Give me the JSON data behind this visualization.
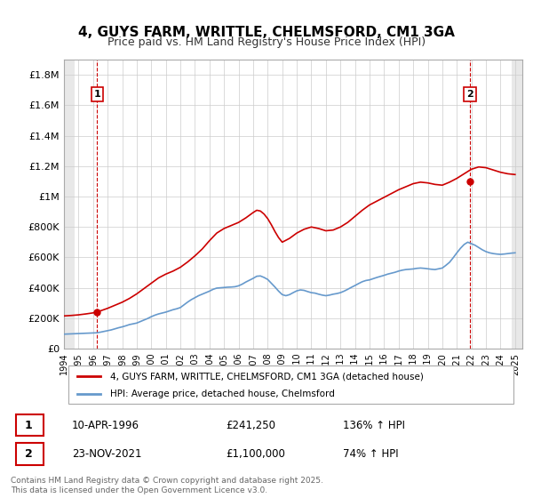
{
  "title": "4, GUYS FARM, WRITTLE, CHELMSFORD, CM1 3GA",
  "subtitle": "Price paid vs. HM Land Registry's House Price Index (HPI)",
  "xlim": [
    1994.0,
    2025.5
  ],
  "ylim": [
    0,
    1900000
  ],
  "yticks": [
    0,
    200000,
    400000,
    600000,
    800000,
    1000000,
    1200000,
    1400000,
    1600000,
    1800000
  ],
  "ytick_labels": [
    "£0",
    "£200K",
    "£400K",
    "£600K",
    "£800K",
    "£1M",
    "£1.2M",
    "£1.4M",
    "£1.6M",
    "£1.8M"
  ],
  "xticks": [
    1994,
    1995,
    1996,
    1997,
    1998,
    1999,
    2000,
    2001,
    2002,
    2003,
    2004,
    2005,
    2006,
    2007,
    2008,
    2009,
    2010,
    2011,
    2012,
    2013,
    2014,
    2015,
    2016,
    2017,
    2018,
    2019,
    2020,
    2021,
    2022,
    2023,
    2024,
    2025
  ],
  "background_color": "#ffffff",
  "plot_bg_color": "#ffffff",
  "grid_color": "#cccccc",
  "hatch_color": "#d0d0d0",
  "red_color": "#cc0000",
  "blue_color": "#6699cc",
  "point1_x": 1996.27,
  "point1_y": 241250,
  "point2_x": 2021.9,
  "point2_y": 1100000,
  "legend_line1": "4, GUYS FARM, WRITTLE, CHELMSFORD, CM1 3GA (detached house)",
  "legend_line2": "HPI: Average price, detached house, Chelmsford",
  "annot1_label": "1",
  "annot1_date": "10-APR-1996",
  "annot1_price": "£241,250",
  "annot1_hpi": "136% ↑ HPI",
  "annot2_label": "2",
  "annot2_date": "23-NOV-2021",
  "annot2_price": "£1,100,000",
  "annot2_hpi": "74% ↑ HPI",
  "footer": "Contains HM Land Registry data © Crown copyright and database right 2025.\nThis data is licensed under the Open Government Licence v3.0.",
  "hpi_data_x": [
    1994.0,
    1994.25,
    1994.5,
    1994.75,
    1995.0,
    1995.25,
    1995.5,
    1995.75,
    1996.0,
    1996.25,
    1996.5,
    1996.75,
    1997.0,
    1997.25,
    1997.5,
    1997.75,
    1998.0,
    1998.25,
    1998.5,
    1998.75,
    1999.0,
    1999.25,
    1999.5,
    1999.75,
    2000.0,
    2000.25,
    2000.5,
    2000.75,
    2001.0,
    2001.25,
    2001.5,
    2001.75,
    2002.0,
    2002.25,
    2002.5,
    2002.75,
    2003.0,
    2003.25,
    2003.5,
    2003.75,
    2004.0,
    2004.25,
    2004.5,
    2004.75,
    2005.0,
    2005.25,
    2005.5,
    2005.75,
    2006.0,
    2006.25,
    2006.5,
    2006.75,
    2007.0,
    2007.25,
    2007.5,
    2007.75,
    2008.0,
    2008.25,
    2008.5,
    2008.75,
    2009.0,
    2009.25,
    2009.5,
    2009.75,
    2010.0,
    2010.25,
    2010.5,
    2010.75,
    2011.0,
    2011.25,
    2011.5,
    2011.75,
    2012.0,
    2012.25,
    2012.5,
    2012.75,
    2013.0,
    2013.25,
    2013.5,
    2013.75,
    2014.0,
    2014.25,
    2014.5,
    2014.75,
    2015.0,
    2015.25,
    2015.5,
    2015.75,
    2016.0,
    2016.25,
    2016.5,
    2016.75,
    2017.0,
    2017.25,
    2017.5,
    2017.75,
    2018.0,
    2018.25,
    2018.5,
    2018.75,
    2019.0,
    2019.25,
    2019.5,
    2019.75,
    2020.0,
    2020.25,
    2020.5,
    2020.75,
    2021.0,
    2021.25,
    2021.5,
    2021.75,
    2022.0,
    2022.25,
    2022.5,
    2022.75,
    2023.0,
    2023.25,
    2023.5,
    2023.75,
    2024.0,
    2024.25,
    2024.5,
    2024.75,
    2025.0
  ],
  "hpi_data_y": [
    95000,
    96000,
    97000,
    98000,
    99000,
    100000,
    101000,
    102000,
    103000,
    104000,
    108000,
    113000,
    118000,
    123000,
    130000,
    137000,
    143000,
    150000,
    158000,
    163000,
    168000,
    178000,
    188000,
    198000,
    210000,
    220000,
    228000,
    234000,
    240000,
    248000,
    256000,
    262000,
    270000,
    288000,
    306000,
    322000,
    335000,
    348000,
    358000,
    368000,
    378000,
    390000,
    398000,
    400000,
    402000,
    404000,
    405000,
    407000,
    413000,
    424000,
    438000,
    450000,
    462000,
    476000,
    478000,
    468000,
    455000,
    430000,
    405000,
    378000,
    355000,
    348000,
    355000,
    368000,
    380000,
    386000,
    383000,
    375000,
    368000,
    365000,
    358000,
    352000,
    348000,
    352000,
    358000,
    362000,
    368000,
    378000,
    390000,
    403000,
    415000,
    428000,
    440000,
    448000,
    452000,
    460000,
    468000,
    475000,
    482000,
    490000,
    496000,
    502000,
    510000,
    516000,
    520000,
    522000,
    524000,
    528000,
    530000,
    528000,
    525000,
    522000,
    520000,
    525000,
    530000,
    548000,
    568000,
    598000,
    630000,
    660000,
    685000,
    700000,
    690000,
    680000,
    665000,
    650000,
    638000,
    630000,
    625000,
    622000,
    620000,
    622000,
    625000,
    628000,
    630000
  ],
  "price_data_x": [
    1994.0,
    1994.5,
    1995.0,
    1995.5,
    1996.0,
    1996.5,
    1997.0,
    1997.5,
    1998.0,
    1998.5,
    1999.0,
    1999.5,
    2000.0,
    2000.5,
    2001.0,
    2001.5,
    2002.0,
    2002.5,
    2003.0,
    2003.5,
    2004.0,
    2004.5,
    2005.0,
    2005.5,
    2006.0,
    2006.5,
    2007.0,
    2007.25,
    2007.5,
    2007.75,
    2008.0,
    2008.25,
    2008.5,
    2008.75,
    2009.0,
    2009.5,
    2010.0,
    2010.5,
    2011.0,
    2011.5,
    2012.0,
    2012.5,
    2013.0,
    2013.5,
    2014.0,
    2014.5,
    2015.0,
    2015.5,
    2016.0,
    2016.5,
    2017.0,
    2017.5,
    2018.0,
    2018.5,
    2019.0,
    2019.5,
    2020.0,
    2020.5,
    2021.0,
    2021.5,
    2022.0,
    2022.5,
    2023.0,
    2023.5,
    2024.0,
    2024.5,
    2025.0
  ],
  "price_data_y": [
    215000,
    218000,
    222000,
    228000,
    235000,
    248000,
    265000,
    285000,
    305000,
    330000,
    360000,
    395000,
    430000,
    465000,
    490000,
    510000,
    535000,
    570000,
    610000,
    655000,
    710000,
    760000,
    790000,
    810000,
    830000,
    860000,
    895000,
    910000,
    905000,
    885000,
    855000,
    815000,
    770000,
    730000,
    700000,
    725000,
    760000,
    785000,
    800000,
    790000,
    775000,
    780000,
    800000,
    830000,
    870000,
    910000,
    945000,
    970000,
    995000,
    1020000,
    1045000,
    1065000,
    1085000,
    1095000,
    1090000,
    1080000,
    1075000,
    1095000,
    1120000,
    1150000,
    1180000,
    1195000,
    1190000,
    1175000,
    1160000,
    1150000,
    1145000
  ]
}
